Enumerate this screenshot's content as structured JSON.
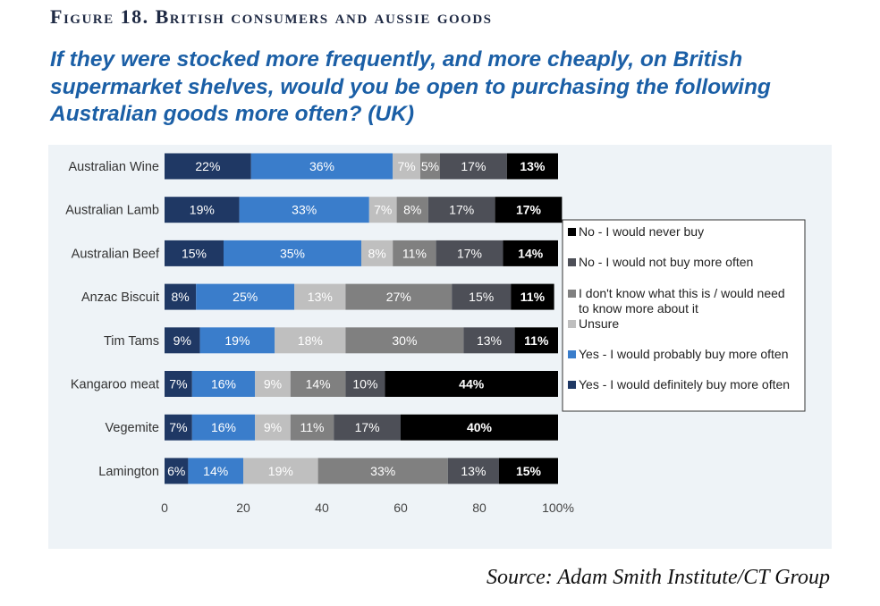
{
  "figure_label": "Figure 18. British consumers and aussie goods",
  "question": "If they were stocked more frequently, and more cheaply, on British supermarket shelves, would you be open to purchasing the following Australian goods more often? (UK)",
  "source": "Source: Adam Smith Institute/CT Group",
  "chart_data": {
    "type": "bar",
    "orientation": "horizontal",
    "stacked": true,
    "categories": [
      "Australian Wine",
      "Australian Lamb",
      "Australian Beef",
      "Anzac Biscuit",
      "Tim Tams",
      "Kangaroo meat",
      "Vegemite",
      "Lamington"
    ],
    "series": [
      {
        "name": "Yes - I would definitely buy more often",
        "color": "#1f3864",
        "labels": [
          "22%",
          "19%",
          "15%",
          "8%",
          "9%",
          "7%",
          "7%",
          "6%"
        ],
        "values": [
          22,
          19,
          15,
          8,
          9,
          7,
          7,
          6
        ]
      },
      {
        "name": "Yes - I would probably buy more often",
        "color": "#3a7dcb",
        "labels": [
          "36%",
          "33%",
          "35%",
          "25%",
          "19%",
          "16%",
          "16%",
          "14%"
        ],
        "values": [
          36,
          33,
          35,
          25,
          19,
          16,
          16,
          14
        ]
      },
      {
        "name": "Unsure",
        "color": "#bfbfbf",
        "labels": [
          "7%",
          "7%",
          "8%",
          "13%",
          "18%",
          "9%",
          "9%",
          "19%"
        ],
        "values": [
          7,
          7,
          8,
          13,
          18,
          9,
          9,
          19
        ]
      },
      {
        "name": "I don't know what this is / would need to know more about it",
        "color": "#808080",
        "labels": [
          "5%",
          "8%",
          "11%",
          "27%",
          "30%",
          "14%",
          "11%",
          "33%"
        ],
        "values": [
          5,
          8,
          11,
          27,
          30,
          14,
          11,
          33
        ]
      },
      {
        "name": "No - I would not buy more often",
        "color": "#4d4f57",
        "labels": [
          "17%",
          "17%",
          "17%",
          "15%",
          "13%",
          "10%",
          "17%",
          "13%"
        ],
        "values": [
          17,
          17,
          17,
          15,
          13,
          10,
          17,
          13
        ]
      },
      {
        "name": "No - I would never buy",
        "color": "#000000",
        "labels": [
          "13%",
          "17%",
          "14%",
          "11%",
          "11%",
          "44%",
          "40%",
          "15%"
        ],
        "values": [
          13,
          17,
          14,
          11,
          11,
          44,
          40,
          15
        ]
      }
    ],
    "xlim": [
      0,
      100
    ],
    "xticks": [
      "0",
      "20",
      "40",
      "60",
      "80",
      "100%"
    ],
    "legend_position": "right",
    "legend_order": [
      "No - I would never buy",
      "No - I would not buy more often",
      "I don't know what this is / would need to know more about it",
      "Unsure",
      "Yes - I would probably buy more often",
      "Yes - I would definitely buy more often"
    ],
    "grid": false
  }
}
